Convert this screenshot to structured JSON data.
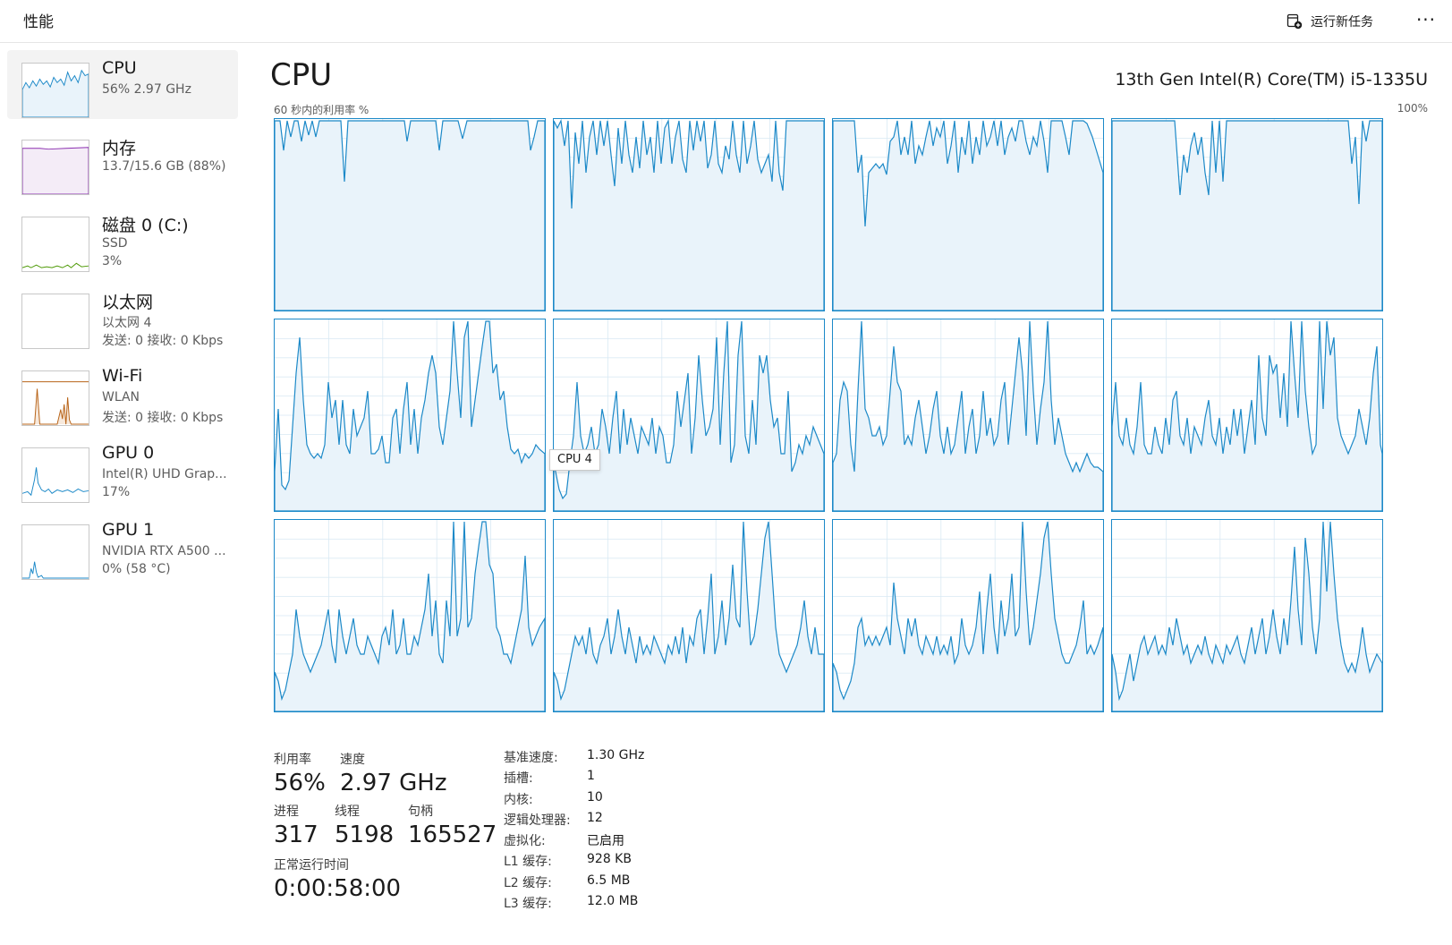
{
  "header": {
    "title": "性能",
    "run_task_label": "运行新任务",
    "more_label": "···"
  },
  "sidebar": {
    "items": [
      {
        "name": "CPU",
        "sub1": "56% 2.97 GHz",
        "sub2": "",
        "color": "#1c89c8"
      },
      {
        "name": "内存",
        "sub1": "13.7/15.6 GB (88%)",
        "sub2": "",
        "color": "#8b2fb0"
      },
      {
        "name": "磁盘 0 (C:)",
        "sub1": "SSD",
        "sub2": "3%",
        "color": "#4e9a06"
      },
      {
        "name": "以太网",
        "sub1": "以太网 4",
        "sub2": "发送: 0 接收: 0 Kbps",
        "color": "#a75f1f"
      },
      {
        "name": "Wi-Fi",
        "sub1": "WLAN",
        "sub2": "发送: 0 接收: 0 Kbps",
        "color": "#b86317"
      },
      {
        "name": "GPU 0",
        "sub1": "Intel(R) UHD Grap...",
        "sub2": "17%",
        "color": "#1c89c8"
      },
      {
        "name": "GPU 1",
        "sub1": "NVIDIA RTX A500 ...",
        "sub2": "0% (58 °C)",
        "color": "#1c89c8"
      }
    ]
  },
  "main": {
    "title": "CPU",
    "model": "13th Gen Intel(R) Core(TM) i5-1335U",
    "axis_left": "60 秒内的利用率 %",
    "axis_right": "100%",
    "tooltip": "CPU 4"
  },
  "stats": {
    "utilization_label": "利用率",
    "utilization": "56%",
    "speed_label": "速度",
    "speed": "2.97 GHz",
    "processes_label": "进程",
    "processes": "317",
    "threads_label": "线程",
    "threads": "5198",
    "handles_label": "句柄",
    "handles": "165527",
    "uptime_label": "正常运行时间",
    "uptime": "0:00:58:00"
  },
  "specs": [
    {
      "k": "基准速度:",
      "v": "1.30 GHz"
    },
    {
      "k": "插槽:",
      "v": "1"
    },
    {
      "k": "内核:",
      "v": "10"
    },
    {
      "k": "逻辑处理器:",
      "v": "12"
    },
    {
      "k": "虚拟化:",
      "v": "已启用"
    },
    {
      "k": "L1 缓存:",
      "v": "928 KB"
    },
    {
      "k": "L2 缓存:",
      "v": "6.5 MB"
    },
    {
      "k": "L3 缓存:",
      "v": "12.0 MB"
    }
  ],
  "colors": {
    "accent": "#1c89c8",
    "fill": "#e9f3fa",
    "gridline": "#d9e9f4"
  }
}
